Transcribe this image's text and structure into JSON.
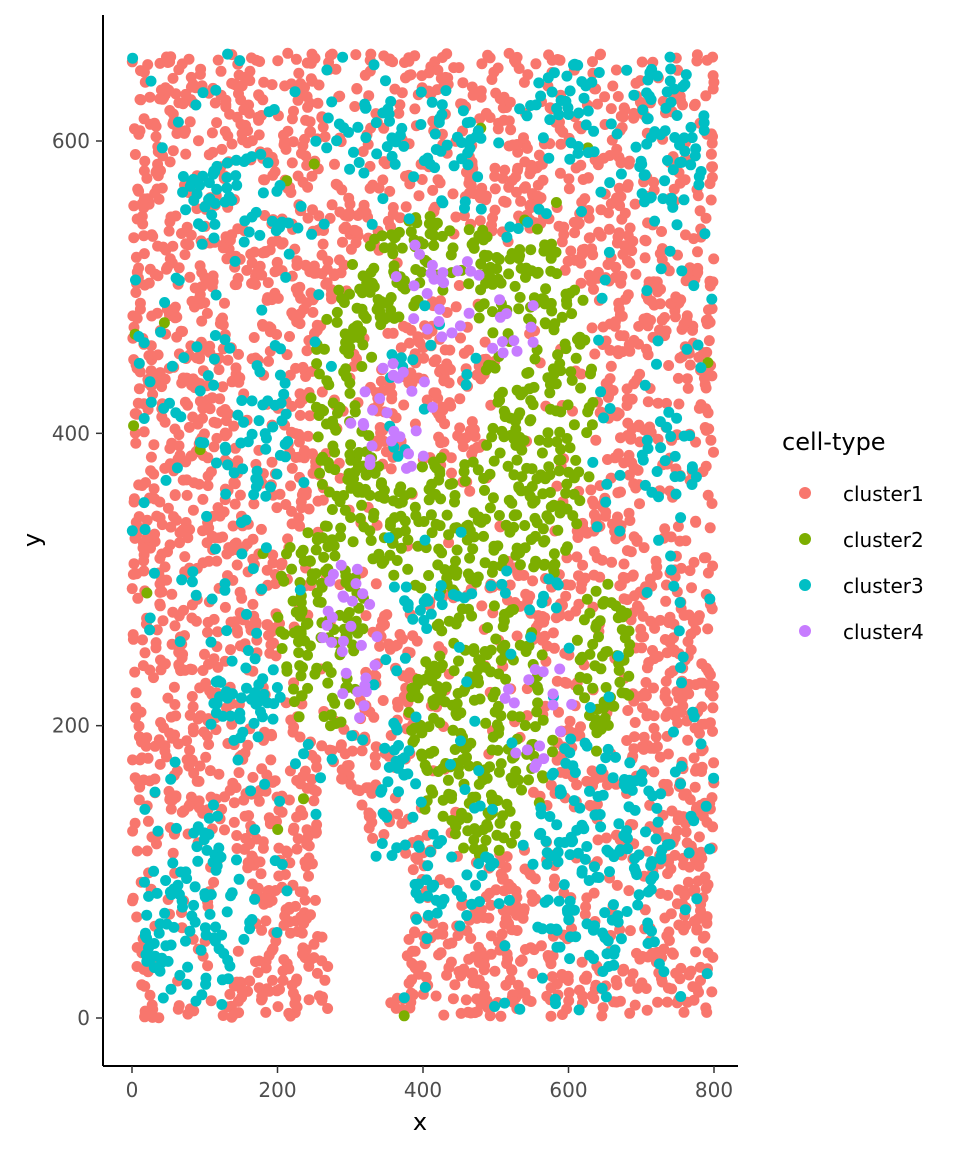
{
  "chart_data": {
    "type": "scatter",
    "title": "",
    "xlabel": "x",
    "ylabel": "y",
    "xlim": [
      -40,
      830
    ],
    "ylim": [
      -33,
      685
    ],
    "x_ticks": [
      0,
      200,
      400,
      600,
      800
    ],
    "y_ticks": [
      0,
      200,
      400,
      600
    ],
    "x_tick_labels": [
      "0",
      "200",
      "400",
      "600",
      "800"
    ],
    "y_tick_labels": [
      "0",
      "200",
      "400",
      "600"
    ],
    "grid": false,
    "legend": {
      "title": "cell-type",
      "placement": "right"
    },
    "point_bounds": {
      "x": [
        0,
        800
      ],
      "y": [
        0,
        660
      ]
    },
    "series": [
      {
        "name": "cluster1",
        "color": "#F8766D",
        "description_regions": "background everywhere outside clusters"
      },
      {
        "name": "cluster2",
        "color": "#7CAE00"
      },
      {
        "name": "cluster3",
        "color": "#00BFC4"
      },
      {
        "name": "cluster4",
        "color": "#C77CFF"
      }
    ],
    "regions": {
      "cluster2_areas": [
        {
          "type": "ring",
          "cx": 420,
          "cy": 420,
          "rx": 175,
          "ry": 130,
          "inner": 0.55
        },
        {
          "type": "ring",
          "cx": 560,
          "cy": 420,
          "rx": 75,
          "ry": 120,
          "inner": 0.5
        },
        {
          "type": "blob",
          "cx": 260,
          "cy": 270,
          "rx": 60,
          "ry": 80
        },
        {
          "type": "blob",
          "cx": 480,
          "cy": 200,
          "rx": 100,
          "ry": 90
        },
        {
          "type": "blob",
          "cx": 650,
          "cy": 240,
          "rx": 40,
          "ry": 60
        },
        {
          "type": "blob",
          "cx": 460,
          "cy": 360,
          "rx": 110,
          "ry": 25
        }
      ],
      "cluster4_areas": [
        {
          "cx": 420,
          "cy": 500,
          "rx": 60,
          "ry": 35
        },
        {
          "cx": 520,
          "cy": 470,
          "rx": 40,
          "ry": 30
        },
        {
          "cx": 560,
          "cy": 210,
          "rx": 50,
          "ry": 40
        },
        {
          "cx": 300,
          "cy": 260,
          "rx": 40,
          "ry": 60
        },
        {
          "cx": 360,
          "cy": 410,
          "rx": 60,
          "ry": 40
        }
      ],
      "cluster3_areas": [
        {
          "cx": 370,
          "cy": 600,
          "rx": 110,
          "ry": 30
        },
        {
          "cx": 600,
          "cy": 620,
          "rx": 70,
          "ry": 35
        },
        {
          "cx": 150,
          "cy": 560,
          "rx": 80,
          "ry": 30
        },
        {
          "cx": 90,
          "cy": 70,
          "rx": 80,
          "ry": 60
        },
        {
          "cx": 160,
          "cy": 220,
          "rx": 50,
          "ry": 30
        },
        {
          "cx": 640,
          "cy": 110,
          "rx": 90,
          "ry": 80
        },
        {
          "cx": 420,
          "cy": 130,
          "rx": 90,
          "ry": 70
        },
        {
          "cx": 180,
          "cy": 400,
          "rx": 40,
          "ry": 50
        },
        {
          "cx": 740,
          "cy": 600,
          "rx": 50,
          "ry": 60
        },
        {
          "cx": 420,
          "cy": 300,
          "rx": 60,
          "ry": 40
        },
        {
          "cx": 740,
          "cy": 380,
          "rx": 40,
          "ry": 40
        }
      ],
      "empty_areas": [
        {
          "cx": 290,
          "cy": 100,
          "rx": 40,
          "ry": 60
        },
        {
          "cx": 350,
          "cy": 60,
          "rx": 30,
          "ry": 50
        },
        {
          "cx": 310,
          "cy": 20,
          "rx": 45,
          "ry": 30
        },
        {
          "cx": 150,
          "cy": 480,
          "rx": 25,
          "ry": 20
        }
      ]
    }
  }
}
